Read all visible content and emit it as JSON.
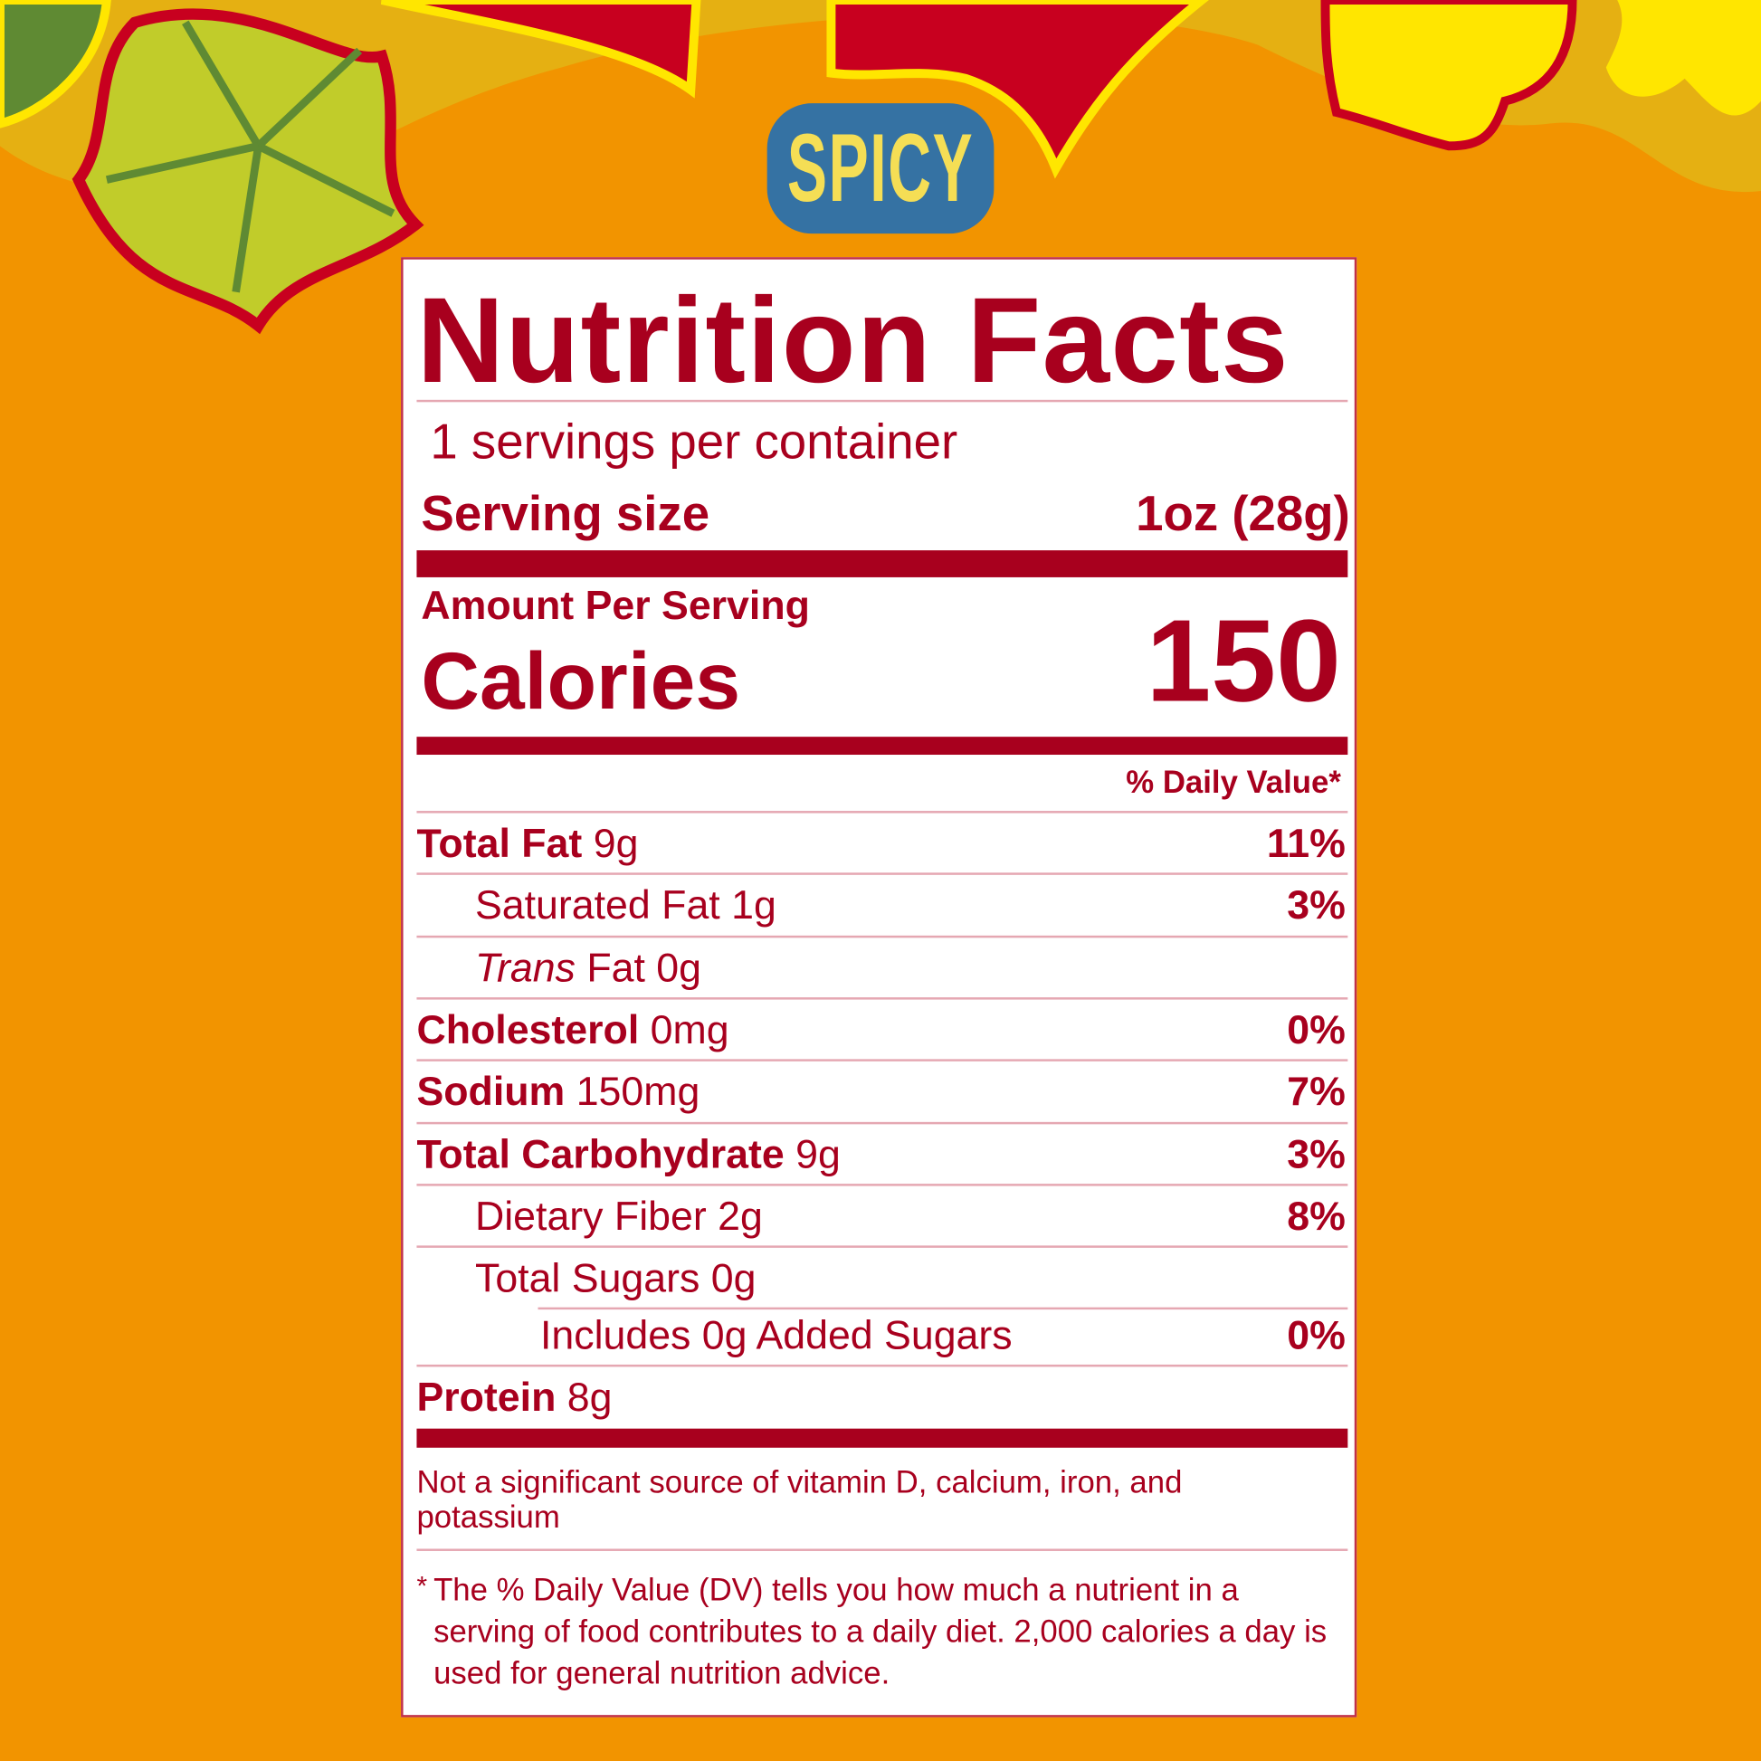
{
  "badge": {
    "text": "SPICY"
  },
  "colors": {
    "background": "#f29400",
    "label_text": "#a8001e",
    "badge_bg": "#3572a3",
    "badge_text": "#f5de55"
  },
  "label": {
    "title": "Nutrition Facts",
    "servings": "1 servings per container",
    "serving_size_label": "Serving size",
    "serving_size_value": "1oz (28g)",
    "amount_per_serving": "Amount Per Serving",
    "calories_label": "Calories",
    "calories_value": "150",
    "dv_header": "% Daily Value*",
    "rows": [
      {
        "name": "Total Fat",
        "amount": "9g",
        "dv": "11%"
      },
      {
        "name": "Saturated Fat",
        "amount": "1g",
        "dv": "3%"
      },
      {
        "name": "Trans",
        "amount": "Fat 0g",
        "dv": ""
      },
      {
        "name": "Cholesterol",
        "amount": "0mg",
        "dv": "0%"
      },
      {
        "name": "Sodium",
        "amount": "150mg",
        "dv": "7%"
      },
      {
        "name": "Total Carbohydrate",
        "amount": "9g",
        "dv": "3%"
      },
      {
        "name": "Dietary Fiber",
        "amount": "2g",
        "dv": "8%"
      },
      {
        "name": "Total Sugars",
        "amount": "0g",
        "dv": ""
      },
      {
        "name": "Includes 0g Added Sugars",
        "amount": "",
        "dv": "0%"
      },
      {
        "name": "Protein",
        "amount": "8g",
        "dv": ""
      }
    ],
    "footnote_1": "Not a significant source of vitamin D, calcium, iron, and potassium",
    "footnote_2": "The % Daily Value (DV) tells you how much a nutrient in a serving of food contributes to a daily diet. 2,000 calories a day is used for general nutrition advice.",
    "asterisk": "*"
  }
}
